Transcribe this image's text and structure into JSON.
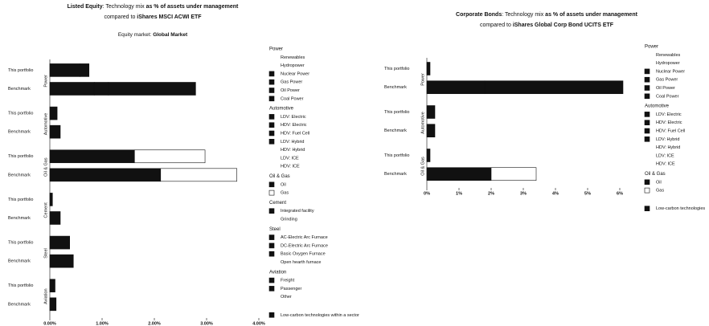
{
  "chart_data": [
    {
      "type": "stacked-barh",
      "title": [
        {
          "text": "Listed Equity",
          "bold": true
        },
        {
          "text": ": Technology mix ",
          "bold": false
        },
        {
          "text": "as % of assets under management",
          "bold": true
        }
      ],
      "title_line2": [
        {
          "text": "compared to ",
          "bold": false
        },
        {
          "text": "iShares MSCI ACWI ETF",
          "bold": true
        }
      ],
      "subtitle": [
        {
          "text": "Equity market: ",
          "bold": false
        },
        {
          "text": "Global Market",
          "bold": true
        }
      ],
      "xlim": [
        0,
        4
      ],
      "xticks": [
        {
          "value": 0,
          "label": "0.00%"
        },
        {
          "value": 1,
          "label": "1.00%"
        },
        {
          "value": 2,
          "label": "2.00%"
        },
        {
          "value": 3,
          "label": "3.00%"
        },
        {
          "value": 4,
          "label": "4.00%"
        }
      ],
      "sectors": [
        {
          "name": "Power",
          "rows": [
            {
              "name": "This portfolio",
              "values": [
                0.58,
                0.17
              ],
              "colors": [
                "#111111",
                "#111111"
              ]
            },
            {
              "name": "Benchmark",
              "values": [
                0.85,
                0.27,
                1.67
              ],
              "colors": [
                "#111111",
                "#111111",
                "#111111"
              ]
            }
          ]
        },
        {
          "name": "Automotive",
          "rows": [
            {
              "name": "This portfolio",
              "values": [
                0.14
              ],
              "colors": [
                "#111111"
              ]
            },
            {
              "name": "Benchmark",
              "values": [
                0.2
              ],
              "colors": [
                "#111111"
              ]
            }
          ]
        },
        {
          "name": "Oil & Gas",
          "rows": [
            {
              "name": "This portfolio",
              "values": [
                1.62,
                1.35
              ],
              "colors": [
                "#111111",
                "#ffffff"
              ]
            },
            {
              "name": "Benchmark",
              "values": [
                2.12,
                1.46
              ],
              "colors": [
                "#111111",
                "#ffffff"
              ]
            }
          ]
        },
        {
          "name": "Cement",
          "rows": [
            {
              "name": "This portfolio",
              "values": [
                0.05
              ],
              "colors": [
                "#111111"
              ]
            },
            {
              "name": "Benchmark",
              "values": [
                0.2
              ],
              "colors": [
                "#111111"
              ]
            }
          ]
        },
        {
          "name": "Steel",
          "rows": [
            {
              "name": "This portfolio",
              "values": [
                0.38
              ],
              "colors": [
                "#111111"
              ]
            },
            {
              "name": "Benchmark",
              "values": [
                0.45
              ],
              "colors": [
                "#111111"
              ]
            }
          ]
        },
        {
          "name": "Aviation",
          "rows": [
            {
              "name": "This portfolio",
              "values": [
                0.1
              ],
              "colors": [
                "#111111"
              ]
            },
            {
              "name": "Benchmark",
              "values": [
                0.12
              ],
              "colors": [
                "#111111"
              ]
            }
          ]
        }
      ],
      "legend": [
        {
          "name": "Power",
          "items": [
            {
              "name": "Renewables",
              "color": null
            },
            {
              "name": "Hydropower",
              "color": null
            },
            {
              "name": "Nuclear Power",
              "color": "#111111"
            },
            {
              "name": "Gas Power",
              "color": "#111111"
            },
            {
              "name": "Oil Power",
              "color": "#111111"
            },
            {
              "name": "Coal Power",
              "color": "#111111"
            }
          ]
        },
        {
          "name": "Automotive",
          "items": [
            {
              "name": "LDV: Electric",
              "color": "#111111"
            },
            {
              "name": "HDV: Electric",
              "color": "#111111"
            },
            {
              "name": "HDV: Fuel Cell",
              "color": "#111111"
            },
            {
              "name": "LDV: Hybrid",
              "color": "#111111"
            },
            {
              "name": "HDV: Hybrid",
              "color": null
            },
            {
              "name": "LDV: ICE",
              "color": null
            },
            {
              "name": "HDV: ICE",
              "color": null
            }
          ]
        },
        {
          "name": "Oil & Gas",
          "items": [
            {
              "name": "Oil",
              "color": "#111111"
            },
            {
              "name": "Gas",
              "color": "#ffffff"
            }
          ]
        },
        {
          "name": "Cement",
          "items": [
            {
              "name": "Integrated facility",
              "color": "#111111"
            },
            {
              "name": "Grinding",
              "color": null
            }
          ]
        },
        {
          "name": "Steel",
          "items": [
            {
              "name": "AC-Electric Arc Furnace",
              "color": "#111111"
            },
            {
              "name": "DC-Electric Arc Furnace",
              "color": "#111111"
            },
            {
              "name": "Basic Oxygen Furnace",
              "color": "#111111"
            },
            {
              "name": "Open hearth furnace",
              "color": null
            }
          ]
        },
        {
          "name": "Aviation",
          "items": [
            {
              "name": "Freight",
              "color": "#111111"
            },
            {
              "name": "Passenger",
              "color": "#111111"
            },
            {
              "name": "Other",
              "color": null
            }
          ]
        },
        {
          "name": "",
          "items": [
            {
              "name": "Low-carbon technologies within a sector",
              "color": "#111111"
            }
          ]
        }
      ]
    },
    {
      "type": "stacked-barh",
      "title": [
        {
          "text": "Corporate Bonds",
          "bold": true
        },
        {
          "text": ": Technology mix ",
          "bold": false
        },
        {
          "text": "as % of assets under management",
          "bold": true
        }
      ],
      "title_line2": [
        {
          "text": "compared to ",
          "bold": false
        },
        {
          "text": "iShares Global Corp Bond UCITS ETF",
          "bold": true
        }
      ],
      "xlim": [
        0,
        6
      ],
      "xticks": [
        {
          "value": 0,
          "label": "0%"
        },
        {
          "value": 1,
          "label": "1%"
        },
        {
          "value": 2,
          "label": "2%"
        },
        {
          "value": 3,
          "label": "3%"
        },
        {
          "value": 4,
          "label": "4%"
        },
        {
          "value": 5,
          "label": "5%"
        },
        {
          "value": 6,
          "label": "6%"
        }
      ],
      "sectors": [
        {
          "name": "Power",
          "rows": [
            {
              "name": "This portfolio",
              "values": [
                0.1
              ],
              "colors": [
                "#111111"
              ]
            },
            {
              "name": "Benchmark",
              "values": [
                1.8,
                4.3
              ],
              "colors": [
                "#111111",
                "#111111"
              ]
            }
          ]
        },
        {
          "name": "Automotive",
          "rows": [
            {
              "name": "This portfolio",
              "values": [
                0.25
              ],
              "colors": [
                "#111111"
              ]
            },
            {
              "name": "Benchmark",
              "values": [
                0.25
              ],
              "colors": [
                "#111111"
              ]
            }
          ]
        },
        {
          "name": "Oil & Gas",
          "rows": [
            {
              "name": "This portfolio",
              "values": [
                0.1
              ],
              "colors": [
                "#111111"
              ]
            },
            {
              "name": "Benchmark",
              "values": [
                2.0,
                1.4
              ],
              "colors": [
                "#111111",
                "#ffffff"
              ]
            }
          ]
        }
      ],
      "legend": [
        {
          "name": "Power",
          "items": [
            {
              "name": "Renewables",
              "color": null
            },
            {
              "name": "Hydropower",
              "color": null
            },
            {
              "name": "Nuclear Power",
              "color": "#111111"
            },
            {
              "name": "Gas Power",
              "color": "#111111"
            },
            {
              "name": "Oil Power",
              "color": "#111111"
            },
            {
              "name": "Coal Power",
              "color": "#111111"
            }
          ]
        },
        {
          "name": "Automotive",
          "items": [
            {
              "name": "LDV: Electric",
              "color": "#111111"
            },
            {
              "name": "HDV: Electric",
              "color": "#111111"
            },
            {
              "name": "HDV: Fuel Cell",
              "color": "#111111"
            },
            {
              "name": "LDV: Hybrid",
              "color": "#111111"
            },
            {
              "name": "HDV: Hybrid",
              "color": null
            },
            {
              "name": "LDV: ICE",
              "color": null
            },
            {
              "name": "HDV: ICE",
              "color": null
            }
          ]
        },
        {
          "name": "Oil & Gas",
          "items": [
            {
              "name": "Oil",
              "color": "#111111"
            },
            {
              "name": "Gas",
              "color": "#ffffff"
            }
          ]
        },
        {
          "name": "",
          "items": [
            {
              "name": "Low-carbon technologies",
              "color": "#111111"
            }
          ]
        }
      ]
    }
  ]
}
